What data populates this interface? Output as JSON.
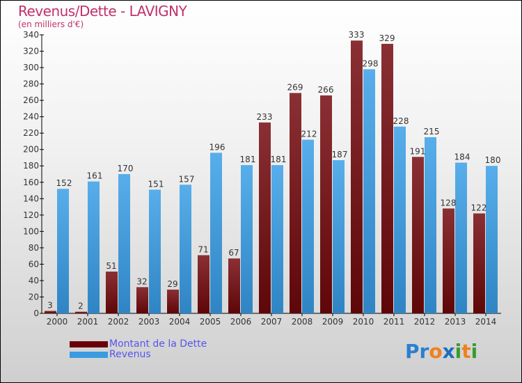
{
  "chart_data": {
    "type": "bar",
    "title": "Revenus/Dette - LAVIGNY",
    "subtitle": "(en milliers d'€)",
    "categories": [
      "2000",
      "2001",
      "2002",
      "2003",
      "2004",
      "2005",
      "2006",
      "2007",
      "2008",
      "2009",
      "2010",
      "2011",
      "2012",
      "2013",
      "2014"
    ],
    "series": [
      {
        "name": "Montant de la Dette",
        "color": "#7a1a1e",
        "values": [
          3,
          2,
          51,
          32,
          29,
          71,
          67,
          233,
          269,
          266,
          333,
          329,
          191,
          128,
          122
        ]
      },
      {
        "name": "Revenus",
        "color": "#3a9be0",
        "values": [
          152,
          161,
          170,
          151,
          157,
          196,
          181,
          181,
          212,
          187,
          298,
          228,
          215,
          184,
          180
        ]
      }
    ],
    "ylim": [
      0,
      340
    ],
    "yticks": [
      0,
      20,
      40,
      60,
      80,
      100,
      120,
      140,
      160,
      180,
      200,
      220,
      240,
      260,
      280,
      300,
      320,
      340
    ],
    "legend": "bottom-left"
  },
  "logo": "Proxiti"
}
